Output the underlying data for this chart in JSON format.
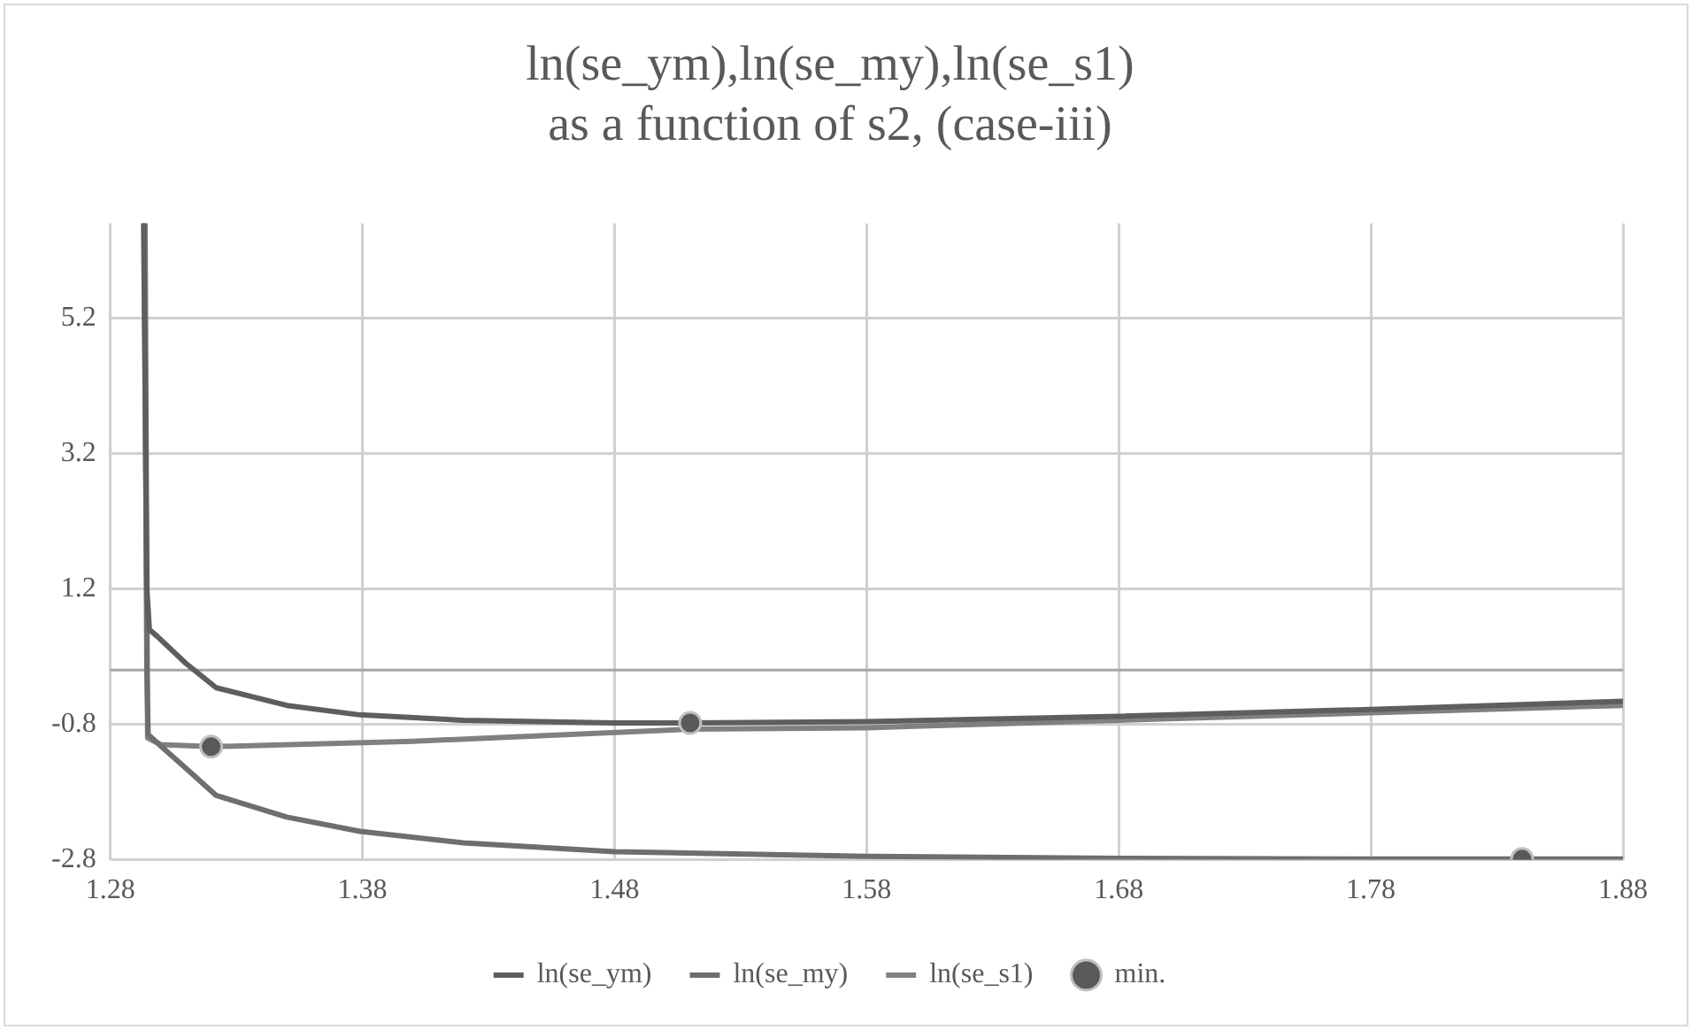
{
  "chart_data": {
    "type": "line",
    "title": "ln(se_ym),ln(se_my),ln(se_s1)\nas a function of s2, (case-iii)",
    "xlim": [
      1.28,
      1.88
    ],
    "xticks": [
      1.28,
      1.38,
      1.48,
      1.58,
      1.68,
      1.78,
      1.88
    ],
    "ylim": [
      -2.8,
      6.6
    ],
    "yticks": [
      -2.8,
      -0.8,
      1.2,
      3.2,
      5.2
    ],
    "grid": true,
    "legend": "bottom",
    "marker": "none",
    "line_style": "solid",
    "ref_lines": [
      {
        "axis": "y",
        "value": 0,
        "color": "#a6a6a6"
      }
    ],
    "series": [
      {
        "name": "ln(se_ym)",
        "color": "#5e5e5e",
        "x": [
          1.2932,
          1.2945,
          1.2955,
          1.2986,
          1.31,
          1.322,
          1.35,
          1.379,
          1.42,
          1.48,
          1.51,
          1.58,
          1.68,
          1.78,
          1.88
        ],
        "values": [
          6.6,
          1.2,
          0.6,
          0.5,
          0.1,
          -0.26,
          -0.52,
          -0.66,
          -0.74,
          -0.78,
          -0.78,
          -0.76,
          -0.68,
          -0.58,
          -0.46
        ]
      },
      {
        "name": "ln(se_my)",
        "color": "#6e6e6e",
        "x": [
          1.2935,
          1.2945,
          1.295,
          1.3,
          1.31,
          1.322,
          1.35,
          1.379,
          1.42,
          1.48,
          1.58,
          1.68,
          1.78,
          1.84,
          1.88
        ],
        "values": [
          6.6,
          0,
          -0.95,
          -1.12,
          -1.45,
          -1.85,
          -2.17,
          -2.38,
          -2.55,
          -2.68,
          -2.75,
          -2.78,
          -2.79,
          -2.79,
          -2.79
        ]
      },
      {
        "name": "ln(se_s1)",
        "color": "#808080",
        "x": [
          1.2938,
          1.2948,
          1.3,
          1.32,
          1.4,
          1.51,
          1.58,
          1.68,
          1.78,
          1.88
        ],
        "values": [
          6.6,
          -1.0,
          -1.1,
          -1.13,
          -1.05,
          -0.87,
          -0.85,
          -0.74,
          -0.63,
          -0.52
        ]
      },
      {
        "name": "min.",
        "type": "scatter",
        "marker": "circle",
        "color": "#595959",
        "x": [
          1.32,
          1.51,
          1.84
        ],
        "values": [
          -1.13,
          -0.78,
          -2.79
        ]
      }
    ]
  }
}
